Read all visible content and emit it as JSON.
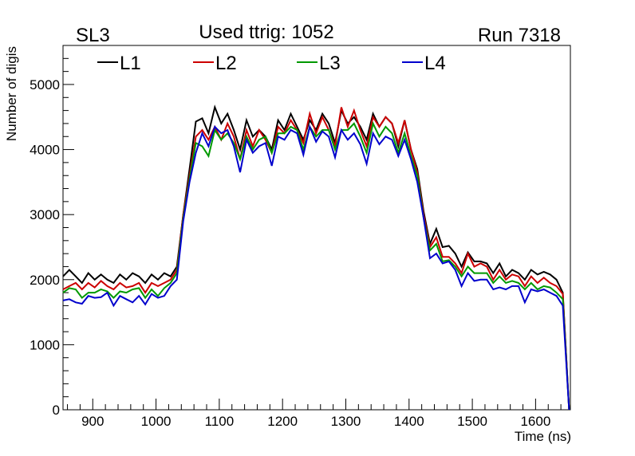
{
  "chart_data": {
    "type": "line",
    "title": "Used ttrig: 1052",
    "label_left": "SL3",
    "label_right": "Run 7318",
    "xlabel": "Time (ns)",
    "ylabel": "Number of digis",
    "xlim": [
      853,
      1655
    ],
    "ylim": [
      0,
      5600
    ],
    "grid": false,
    "legend_position": "top",
    "x": [
      853,
      863,
      873,
      883,
      893,
      903,
      913,
      923,
      933,
      943,
      953,
      963,
      973,
      983,
      993,
      1003,
      1013,
      1023,
      1033,
      1043,
      1053,
      1063,
      1073,
      1083,
      1093,
      1103,
      1113,
      1123,
      1133,
      1143,
      1153,
      1163,
      1173,
      1183,
      1193,
      1203,
      1213,
      1223,
      1233,
      1243,
      1253,
      1263,
      1273,
      1283,
      1293,
      1303,
      1313,
      1323,
      1333,
      1343,
      1353,
      1363,
      1373,
      1383,
      1393,
      1403,
      1413,
      1423,
      1433,
      1443,
      1453,
      1463,
      1473,
      1483,
      1493,
      1503,
      1513,
      1523,
      1533,
      1543,
      1553,
      1563,
      1573,
      1583,
      1593,
      1603,
      1613,
      1623,
      1633,
      1643,
      1653
    ],
    "x_ticks": [
      {
        "v": 900,
        "label": "900"
      },
      {
        "v": 1000,
        "label": "1000"
      },
      {
        "v": 1100,
        "label": "1100"
      },
      {
        "v": 1200,
        "label": "1200"
      },
      {
        "v": 1300,
        "label": "1300"
      },
      {
        "v": 1400,
        "label": "1400"
      },
      {
        "v": 1500,
        "label": "1500"
      },
      {
        "v": 1600,
        "label": "1600"
      }
    ],
    "y_ticks": [
      {
        "v": 0,
        "label": "0"
      },
      {
        "v": 1000,
        "label": "1000"
      },
      {
        "v": 2000,
        "label": "2000"
      },
      {
        "v": 3000,
        "label": "3000"
      },
      {
        "v": 4000,
        "label": "4000"
      },
      {
        "v": 5000,
        "label": "5000"
      }
    ],
    "series": [
      {
        "name": "L1",
        "color": "#000000",
        "values": [
          2050,
          2150,
          2050,
          1950,
          2100,
          2000,
          2080,
          2000,
          1950,
          2080,
          2000,
          2100,
          2050,
          1950,
          2080,
          2000,
          2100,
          2050,
          2200,
          3000,
          3700,
          4430,
          4480,
          4250,
          4650,
          4400,
          4550,
          4300,
          4000,
          4450,
          4200,
          4300,
          4200,
          4000,
          4450,
          4300,
          4550,
          4350,
          4150,
          4450,
          4300,
          4550,
          4400,
          4100,
          4600,
          4400,
          4500,
          4350,
          4150,
          4550,
          4350,
          4500,
          4400,
          4050,
          4450,
          4000,
          3700,
          3050,
          2550,
          2780,
          2500,
          2520,
          2400,
          2200,
          2420,
          2280,
          2280,
          2250,
          2100,
          2250,
          2050,
          2150,
          2100,
          2000,
          2150,
          2080,
          2120,
          2080,
          2000,
          1800,
          0
        ]
      },
      {
        "name": "L2",
        "color": "#cc0000",
        "values": [
          1850,
          1900,
          1950,
          1850,
          1950,
          1880,
          1980,
          1900,
          1850,
          1950,
          1880,
          1900,
          1950,
          1800,
          1950,
          1900,
          1950,
          2000,
          2150,
          3000,
          3600,
          4200,
          4300,
          4150,
          4350,
          4150,
          4400,
          4200,
          3850,
          4300,
          4050,
          4300,
          4150,
          3950,
          4350,
          4250,
          4450,
          4300,
          4100,
          4550,
          4250,
          4500,
          4300,
          4050,
          4650,
          4350,
          4600,
          4300,
          4050,
          4500,
          4350,
          4500,
          4400,
          4100,
          4450,
          4000,
          3650,
          3000,
          2500,
          2650,
          2350,
          2350,
          2250,
          2100,
          2400,
          2200,
          2250,
          2200,
          2000,
          2150,
          2000,
          2080,
          2050,
          1900,
          2050,
          1950,
          2030,
          1950,
          1900,
          1780,
          0
        ]
      },
      {
        "name": "L3",
        "color": "#009900",
        "values": [
          1800,
          1870,
          1850,
          1720,
          1800,
          1800,
          1850,
          1820,
          1720,
          1820,
          1800,
          1850,
          1870,
          1720,
          1850,
          1750,
          1870,
          1950,
          2100,
          2950,
          3550,
          4100,
          4050,
          3900,
          4300,
          4150,
          4250,
          4100,
          3850,
          4200,
          4000,
          4150,
          4200,
          3950,
          4250,
          4250,
          4350,
          4300,
          4000,
          4350,
          4200,
          4300,
          4300,
          4000,
          4300,
          4300,
          4400,
          4200,
          3950,
          4400,
          4200,
          4350,
          4250,
          3950,
          4250,
          3900,
          3600,
          2950,
          2450,
          2550,
          2280,
          2300,
          2200,
          2050,
          2200,
          2100,
          2100,
          2100,
          1950,
          2050,
          1950,
          1980,
          1950,
          1850,
          1950,
          1850,
          1900,
          1880,
          1800,
          1700,
          0
        ]
      },
      {
        "name": "L4",
        "color": "#0000cc",
        "values": [
          1680,
          1700,
          1650,
          1630,
          1750,
          1720,
          1730,
          1800,
          1600,
          1750,
          1700,
          1650,
          1750,
          1620,
          1780,
          1720,
          1750,
          1900,
          2000,
          2900,
          3500,
          3950,
          4250,
          4050,
          4350,
          4250,
          4300,
          4050,
          3650,
          4150,
          3950,
          4050,
          4100,
          3750,
          4200,
          4150,
          4300,
          4250,
          3920,
          4350,
          4120,
          4280,
          4200,
          3880,
          4300,
          4150,
          4250,
          4080,
          3780,
          4250,
          4080,
          4200,
          4150,
          3900,
          4150,
          3850,
          3500,
          2950,
          2330,
          2400,
          2250,
          2280,
          2150,
          1900,
          2100,
          1980,
          2000,
          2000,
          1850,
          1880,
          1850,
          1900,
          1900,
          1650,
          1850,
          1820,
          1850,
          1800,
          1750,
          1600,
          0
        ]
      }
    ]
  }
}
